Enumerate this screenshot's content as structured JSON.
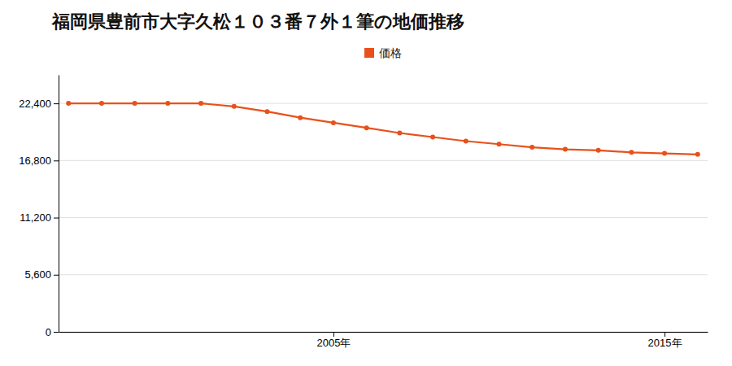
{
  "chart_data": {
    "type": "line",
    "title": "福岡県豊前市大字久松１０３番７外１筆の地価推移",
    "x": [
      1997,
      1998,
      1999,
      2000,
      2001,
      2002,
      2003,
      2004,
      2005,
      2006,
      2007,
      2008,
      2009,
      2010,
      2011,
      2012,
      2013,
      2014,
      2015,
      2016
    ],
    "series": [
      {
        "name": "価格",
        "color": "#e8511a",
        "marker": "circle",
        "values": [
          22400,
          22400,
          22400,
          22400,
          22400,
          22100,
          21600,
          21000,
          20500,
          20000,
          19500,
          19100,
          18700,
          18400,
          18100,
          17900,
          17800,
          17600,
          17500,
          17400
        ]
      }
    ],
    "xlim": [
      1996.7,
      2016.3
    ],
    "xticks": [
      {
        "value": 2005,
        "label": "2005年"
      },
      {
        "value": 2015,
        "label": "2015年"
      }
    ],
    "ylim": [
      0,
      25200
    ],
    "yticks": [
      0,
      {
        "value": 5600,
        "label": "5,600"
      },
      {
        "value": 11200,
        "label": "11,200"
      },
      {
        "value": 16800,
        "label": "16,800"
      },
      {
        "value": 22400,
        "label": "22,400"
      }
    ],
    "grid": true,
    "legend": "top"
  }
}
